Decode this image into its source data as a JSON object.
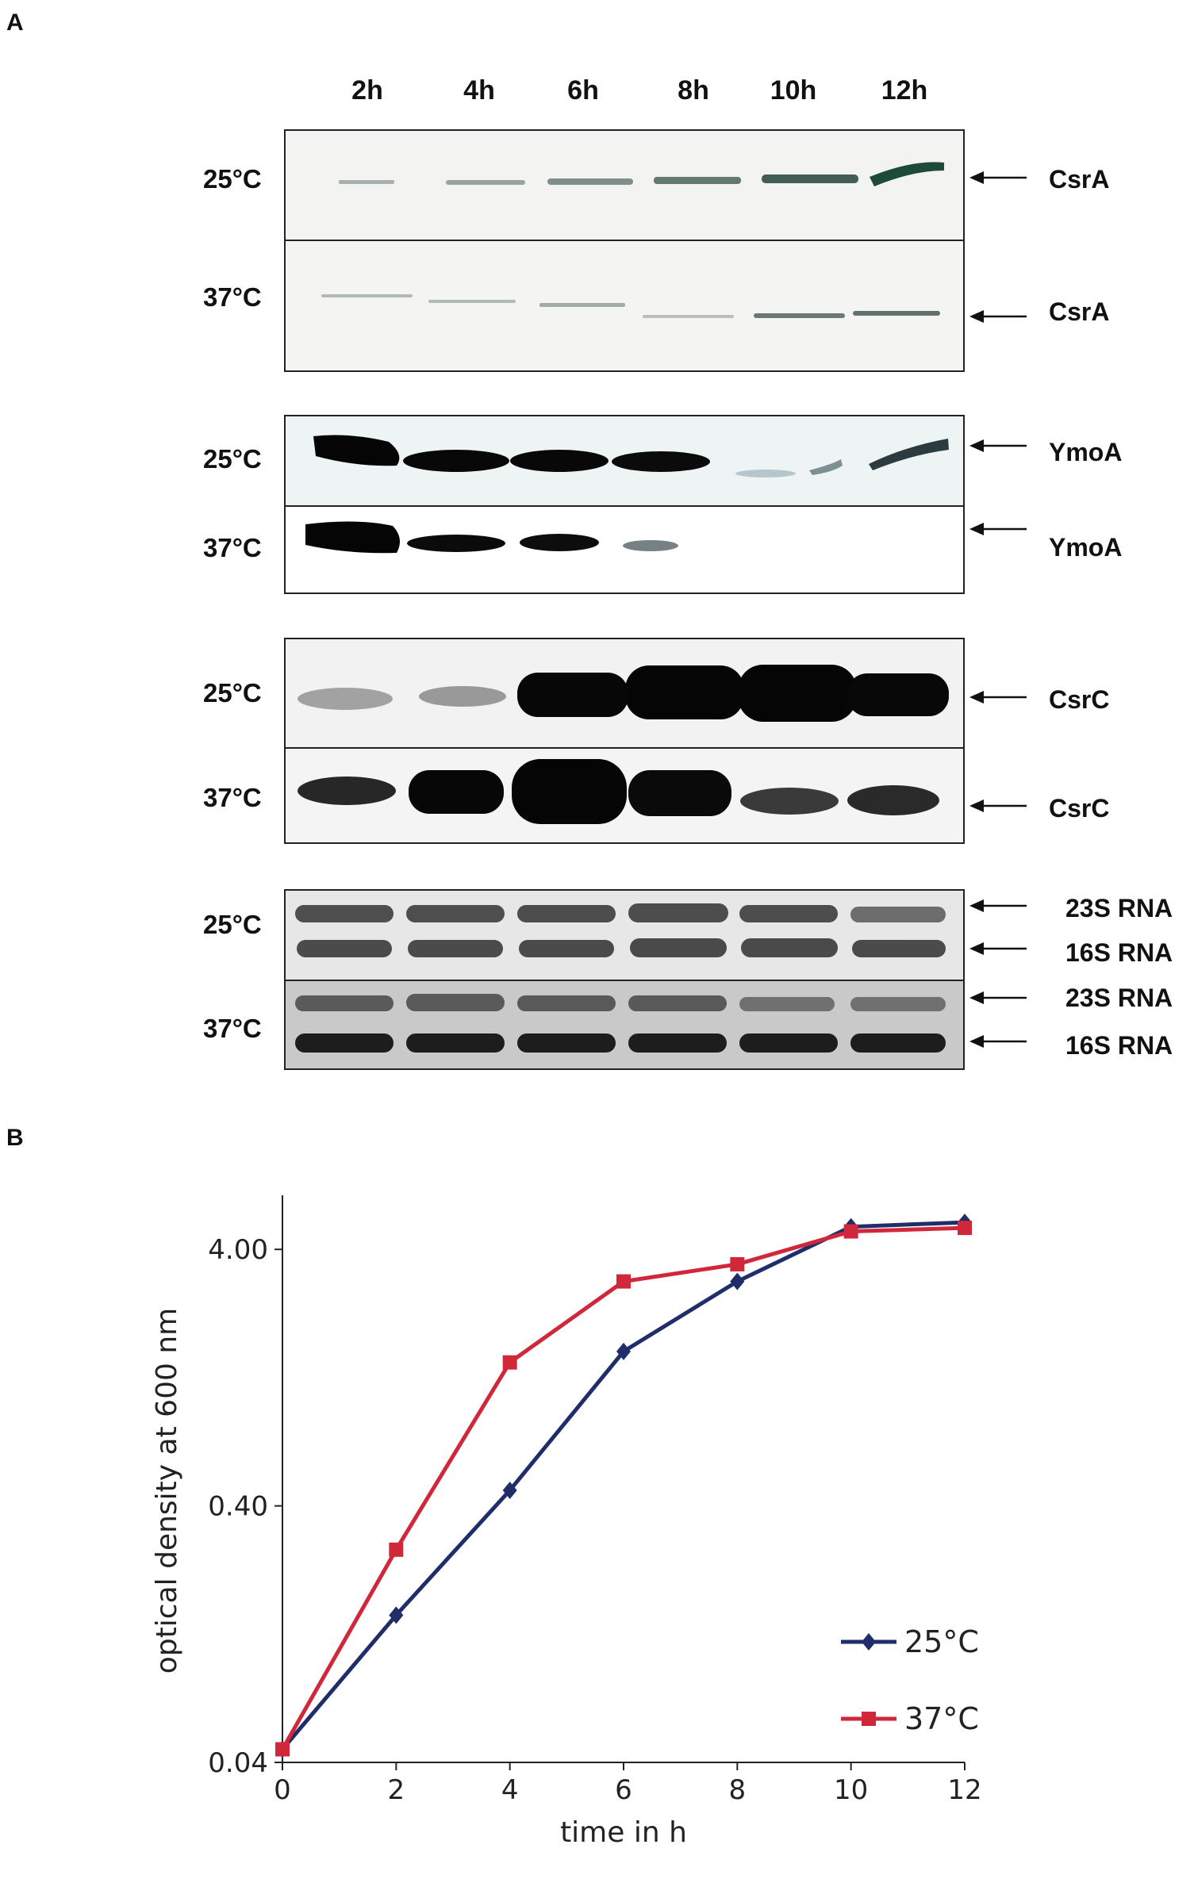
{
  "panel_a": {
    "letter": "A",
    "lanes": [
      "2h",
      "4h",
      "6h",
      "8h",
      "10h",
      "12h"
    ],
    "blots": [
      {
        "name": "csra",
        "rows": [
          {
            "temp": "25°C",
            "labels": [
              "CsrA"
            ]
          },
          {
            "temp": "37°C",
            "labels": [
              "CsrA"
            ]
          }
        ]
      },
      {
        "name": "ymoa",
        "rows": [
          {
            "temp": "25°C",
            "labels": [
              "YmoA"
            ]
          },
          {
            "temp": "37°C",
            "labels": [
              "YmoA"
            ]
          }
        ]
      },
      {
        "name": "csrc",
        "rows": [
          {
            "temp": "25°C",
            "labels": [
              "CsrC"
            ]
          },
          {
            "temp": "37°C",
            "labels": [
              "CsrC"
            ]
          }
        ]
      },
      {
        "name": "rrna",
        "rows": [
          {
            "temp": "25°C",
            "labels": [
              "23S RNA",
              "16S RNA"
            ]
          },
          {
            "temp": "37°C",
            "labels": [
              "23S RNA",
              "16S RNA"
            ]
          }
        ]
      }
    ]
  },
  "panel_b": {
    "letter": "B"
  },
  "chart_data": {
    "type": "line",
    "title": "",
    "xlabel": "time in h",
    "ylabel": "optical density at 600 nm",
    "x": [
      0,
      2,
      4,
      6,
      8,
      10,
      12
    ],
    "x_ticks": [
      "0",
      "2",
      "4",
      "6",
      "8",
      "10",
      "12"
    ],
    "y_scale": "log",
    "y_ticks": [
      "0.04",
      "0.40",
      "4.00"
    ],
    "ylim": [
      0.04,
      6.5
    ],
    "xlim": [
      0,
      12
    ],
    "grid": false,
    "legend_position": "bottom-right",
    "series": [
      {
        "name": "25°C",
        "color": "#1f2d6b",
        "marker": "diamond",
        "values": [
          0.045,
          0.15,
          0.46,
          1.6,
          3.0,
          4.9,
          5.1
        ]
      },
      {
        "name": "37°C",
        "color": "#d0283a",
        "marker": "square",
        "values": [
          0.045,
          0.27,
          1.45,
          3.0,
          3.5,
          4.7,
          4.85
        ]
      }
    ]
  }
}
